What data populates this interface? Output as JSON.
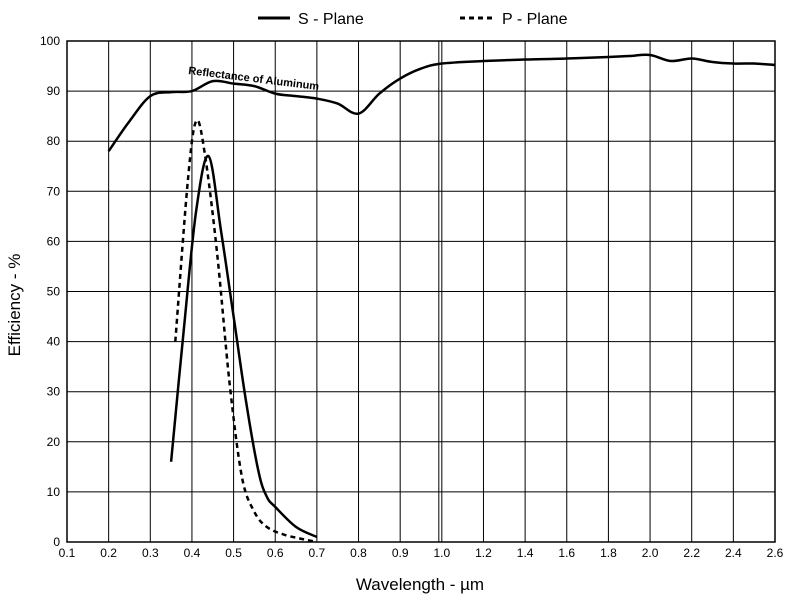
{
  "chart_data": {
    "type": "line",
    "xlabel": "Wavelength - µm",
    "ylabel": "Efficiency - %",
    "ylim": [
      0,
      100
    ],
    "y_ticks": [
      0,
      10,
      20,
      30,
      40,
      50,
      60,
      70,
      80,
      90,
      100
    ],
    "x_ticks_left": [
      0.1,
      0.2,
      0.3,
      0.4,
      0.5,
      0.6,
      0.7,
      0.8,
      0.9,
      1.0
    ],
    "x_ticks_right": [
      1.0,
      1.2,
      1.4,
      1.6,
      1.8,
      2.0,
      2.2,
      2.4,
      2.6
    ],
    "x_tick_labels_left": [
      "0.1",
      "0.2",
      "0.3",
      "0.4",
      "0.5",
      "0.6",
      "0.7",
      "0.8",
      "0.9",
      "1.0"
    ],
    "x_tick_labels_right": [
      "1.2",
      "1.4",
      "1.6",
      "1.8",
      "2.0",
      "2.2",
      "2.4",
      "2.6"
    ],
    "x_axis_note": "axis is split at 1.0 µm: 0.1–1.0 in steps of 0.1, 1.0–2.6 in steps of 0.2, equal spacing per step",
    "grid": true,
    "legend": {
      "position": "top-center",
      "entries": [
        {
          "label": "S - Plane",
          "style": "solid"
        },
        {
          "label": "P - Plane",
          "style": "dashed"
        }
      ]
    },
    "annotation": "Reflectance of Aluminum",
    "series": [
      {
        "name": "S - Plane",
        "style": "solid",
        "x": [
          0.35,
          0.38,
          0.41,
          0.44,
          0.47,
          0.5,
          0.53,
          0.56,
          0.58,
          0.6,
          0.65,
          0.7
        ],
        "y": [
          16,
          42,
          66,
          77,
          62,
          45,
          28,
          14,
          9,
          7,
          3,
          1
        ]
      },
      {
        "name": "P - Plane",
        "style": "dashed",
        "x": [
          0.36,
          0.39,
          0.41,
          0.43,
          0.46,
          0.49,
          0.52,
          0.55,
          0.58,
          0.62,
          0.67,
          0.7
        ],
        "y": [
          40,
          72,
          84,
          78,
          58,
          32,
          13,
          6,
          3,
          1.5,
          0.5,
          0
        ]
      },
      {
        "style": "solid",
        "x": [
          0.2,
          0.25,
          0.3,
          0.35,
          0.4,
          0.45,
          0.5,
          0.55,
          0.6,
          0.65,
          0.7,
          0.75,
          0.8,
          0.85,
          0.9,
          0.95,
          1.0,
          1.2,
          1.4,
          1.6,
          1.8,
          1.9,
          2.0,
          2.1,
          2.2,
          2.3,
          2.4,
          2.5,
          2.6
        ],
        "y": [
          78,
          84,
          89,
          89.8,
          90,
          92,
          91.5,
          91,
          89.5,
          89,
          88.5,
          87.5,
          85.5,
          89.5,
          92.5,
          94.5,
          95.5,
          96,
          96.3,
          96.5,
          96.8,
          97,
          97.2,
          96,
          96.5,
          95.8,
          95.5,
          95.5,
          95.2
        ]
      }
    ]
  }
}
